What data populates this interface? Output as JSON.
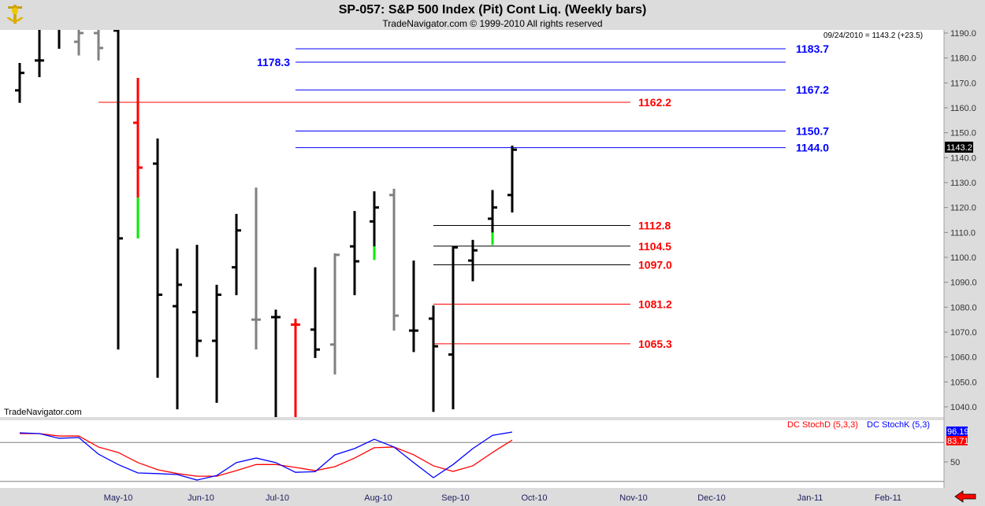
{
  "header": {
    "title": "SP-057:  S&P 500 Index (Pit) Cont Liq.  (Weekly bars)",
    "copyright": "TradeNavigator.com © 1999-2010 All rights reserved"
  },
  "quote": "09/24/2010 = 1143.2 (+23.5)",
  "watermark": "TradeNavigator.com",
  "last_price": "1143.2",
  "colors": {
    "black": "#000000",
    "gray": "#808080",
    "red": "#ff0000",
    "green": "#00ee00",
    "blue": "#0000ff"
  },
  "chart_data": {
    "type": "ohlc",
    "price_axis": {
      "range": [
        1035,
        1192
      ],
      "ticks": [
        "1190.0",
        "1180.0",
        "1170.0",
        "1160.0",
        "1150.0",
        "1140.0",
        "1130.0",
        "1120.0",
        "1110.0",
        "1100.0",
        "1090.0",
        "1080.0",
        "1070.0",
        "1060.0",
        "1050.0",
        "1040.0"
      ]
    },
    "x_ticks": [
      "May-10",
      "Jun-10",
      "Jul-10",
      "Aug-10",
      "Sep-10",
      "Oct-10",
      "Nov-10",
      "Dec-10",
      "Jan-11",
      "Feb-11"
    ],
    "bars": [
      {
        "o": 1167,
        "h": 1178,
        "l": 1162,
        "c": 1174,
        "color": "black"
      },
      {
        "o": 1179,
        "h": 1192,
        "l": 1172.3,
        "c": 1179,
        "color": "black"
      },
      {
        "o": 1192,
        "h": 1192,
        "l": 1183.7,
        "c": 1192,
        "color": "black"
      },
      {
        "o": 1186.5,
        "h": 1192,
        "l": 1181,
        "c": 1190,
        "color": "gray"
      },
      {
        "o": 1190,
        "h": 1192,
        "l": 1179,
        "c": 1184,
        "color": "gray"
      },
      {
        "o": 1191,
        "h": 1192,
        "l": 1063,
        "c": 1107.6,
        "color": "black"
      },
      {
        "o": 1154,
        "h": 1172,
        "l": 1107.6,
        "c": 1136,
        "color": "red",
        "green_below": 1124
      },
      {
        "o": 1137.6,
        "h": 1147.7,
        "l": 1051.7,
        "c": 1085,
        "color": "black"
      },
      {
        "o": 1080.4,
        "h": 1103.5,
        "l": 1039,
        "c": 1089,
        "color": "black"
      },
      {
        "o": 1078,
        "h": 1105,
        "l": 1060,
        "c": 1066.5,
        "color": "black"
      },
      {
        "o": 1066.5,
        "h": 1089,
        "l": 1041.6,
        "c": 1085,
        "color": "black"
      },
      {
        "o": 1096,
        "h": 1117.4,
        "l": 1084.8,
        "c": 1110.8,
        "color": "black"
      },
      {
        "o": 1075,
        "h": 1128,
        "l": 1063,
        "c": 1075,
        "color": "gray"
      },
      {
        "o": 1076,
        "h": 1079,
        "l": 1035,
        "c": 1076,
        "color": "black"
      },
      {
        "o": 1073,
        "h": 1075.4,
        "l": 1035,
        "c": 1073,
        "color": "red"
      },
      {
        "o": 1071,
        "h": 1096,
        "l": 1059.6,
        "c": 1063,
        "color": "black"
      },
      {
        "o": 1065,
        "h": 1101.6,
        "l": 1053,
        "c": 1101,
        "color": "gray"
      },
      {
        "o": 1104.4,
        "h": 1118.6,
        "l": 1084.8,
        "c": 1098.4,
        "color": "black"
      },
      {
        "o": 1114.4,
        "h": 1126.5,
        "l": 1099,
        "c": 1120,
        "color": "black",
        "green_below": 1104.4
      },
      {
        "o": 1125,
        "h": 1127.5,
        "l": 1070.6,
        "c": 1076.6,
        "color": "gray"
      },
      {
        "o": 1070.6,
        "h": 1098.7,
        "l": 1062,
        "c": 1070.6,
        "color": "black"
      },
      {
        "o": 1075.4,
        "h": 1080.7,
        "l": 1038,
        "c": 1064.3,
        "color": "black"
      },
      {
        "o": 1061,
        "h": 1104.4,
        "l": 1039,
        "c": 1104,
        "color": "black"
      },
      {
        "o": 1098.7,
        "h": 1107,
        "l": 1090.4,
        "c": 1102.8,
        "color": "black"
      },
      {
        "o": 1115.5,
        "h": 1127,
        "l": 1105,
        "c": 1120,
        "color": "black",
        "green_below": 1110
      },
      {
        "o": 1125,
        "h": 1144.8,
        "l": 1118,
        "c": 1143.2,
        "color": "black"
      }
    ],
    "levels": [
      {
        "value": 1183.7,
        "label": "1183.7",
        "color": "blue",
        "from_bar": 14,
        "side": "right"
      },
      {
        "value": 1178.3,
        "label": "1178.3",
        "color": "blue",
        "from_bar": 14,
        "side": "left"
      },
      {
        "value": 1167.2,
        "label": "1167.2",
        "color": "blue",
        "from_bar": 14,
        "side": "right"
      },
      {
        "value": 1162.2,
        "label": "1162.2",
        "color": "red",
        "from_bar": 4,
        "side": "mid"
      },
      {
        "value": 1150.7,
        "label": "1150.7",
        "color": "blue",
        "from_bar": 14,
        "side": "right"
      },
      {
        "value": 1144.0,
        "label": "1144.0",
        "color": "blue",
        "from_bar": 14,
        "side": "right"
      },
      {
        "value": 1112.8,
        "label": "1112.8",
        "color": "red",
        "from_bar": 21,
        "side": "mid"
      },
      {
        "value": 1104.5,
        "label": "1104.5",
        "color": "red",
        "from_bar": 21,
        "side": "mid"
      },
      {
        "value": 1097.0,
        "label": "1097.0",
        "color": "red",
        "from_bar": 21,
        "side": "mid"
      },
      {
        "value": 1081.2,
        "label": "1081.2",
        "color": "red",
        "from_bar": 21,
        "side": "mid"
      },
      {
        "value": 1065.3,
        "label": "1065.3",
        "color": "red",
        "from_bar": 21,
        "side": "mid"
      }
    ],
    "indicator": {
      "legend_d": "DC StochD (5,3,3)",
      "legend_k": "DC StochK (5,3)",
      "k_label": "96.19",
      "d_label": "83.71",
      "tick_label": "50",
      "guide_lines": [
        80,
        20
      ],
      "stoch_k": [
        95,
        93.7,
        86.5,
        87.7,
        62,
        46,
        33,
        32,
        30.6,
        22,
        29,
        49,
        56,
        49,
        34,
        35,
        61,
        70.7,
        85,
        73,
        49,
        25.7,
        46,
        70.7,
        91,
        96.19
      ],
      "stoch_d": [
        93.7,
        93.7,
        90,
        90,
        73,
        64.6,
        49,
        38,
        32,
        28,
        28,
        36.6,
        46,
        46,
        41.5,
        36.6,
        42.7,
        56,
        72,
        73,
        61,
        44,
        35.4,
        44,
        64.6,
        83.71
      ]
    }
  }
}
